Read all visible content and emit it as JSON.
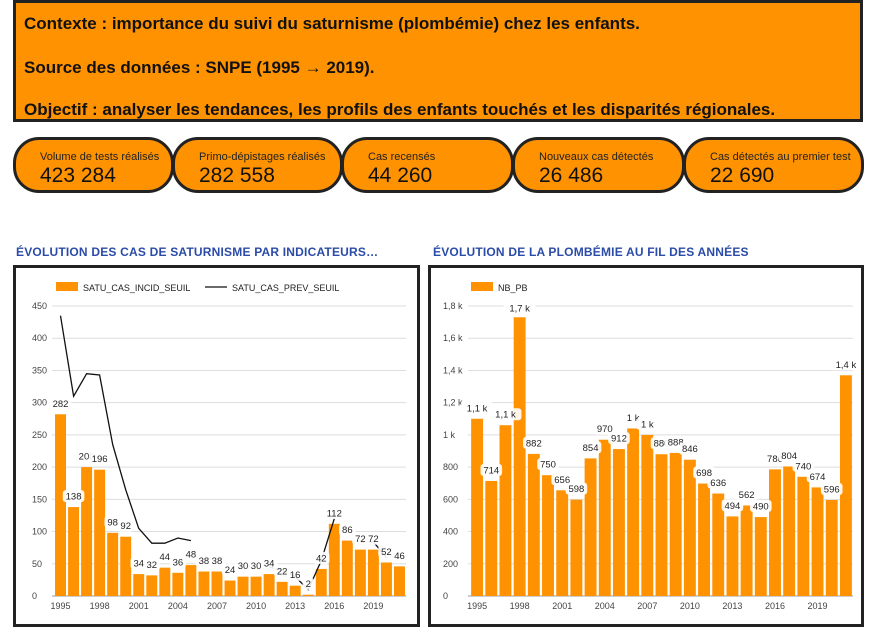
{
  "context": {
    "line1": "Contexte : importance du suivi du saturnisme (plombémie) chez les enfants.",
    "line2": "Source des données : SNPE (1995 → 2019).",
    "line3": "Objectif : analyser les tendances, les profils des enfants touchés et les disparités régionales."
  },
  "kpis": [
    {
      "label": "Volume de tests réalisés",
      "value": "423 284"
    },
    {
      "label": "Primo-dépistages réalisés",
      "value": "282 558"
    },
    {
      "label": "Cas recensés",
      "value": "44 260"
    },
    {
      "label": "Nouveaux cas détectés",
      "value": "26 486"
    },
    {
      "label": "Cas détectés au premier test",
      "value": "22 690"
    }
  ],
  "colors": {
    "accent": "#FF9200",
    "title": "#2B4BA8",
    "border": "#222222"
  },
  "chart_data": [
    {
      "type": "bar",
      "title": "ÉVOLUTION DES CAS DE SATURNISME PAR INDICATEURS…",
      "x": [
        1995,
        1996,
        1997,
        1998,
        1999,
        2000,
        2001,
        2002,
        2003,
        2004,
        2005,
        2006,
        2007,
        2008,
        2009,
        2010,
        2011,
        2012,
        2013,
        2014,
        2015,
        2016,
        2017,
        2018,
        2019,
        2020,
        2021
      ],
      "xticks": [
        "1995",
        "1998",
        "2001",
        "2004",
        "2007",
        "2010",
        "2013",
        "2016",
        "2019"
      ],
      "ylim": [
        0,
        450
      ],
      "yticks": [
        "0",
        "50",
        "100",
        "150",
        "200",
        "250",
        "300",
        "350",
        "400",
        "450"
      ],
      "legend_position": "top-left",
      "grid": true,
      "series": [
        {
          "name": "SATU_CAS_INCID_SEUIL",
          "kind": "bar",
          "values": [
            282,
            138,
            200,
            196,
            98,
            92,
            34,
            32,
            44,
            36,
            48,
            38,
            38,
            24,
            30,
            30,
            34,
            22,
            16,
            2,
            42,
            112,
            86,
            72,
            72,
            52,
            46
          ]
        },
        {
          "name": "SATU_CAS_PREV_SEUIL",
          "kind": "line",
          "values": [
            435,
            310,
            345,
            343,
            235,
            165,
            105,
            82,
            82,
            90,
            86,
            null,
            null,
            null,
            null,
            null,
            45,
            40,
            30,
            10,
            55,
            120,
            null,
            84,
            84,
            60,
            null
          ]
        }
      ]
    },
    {
      "type": "bar",
      "title": "ÉVOLUTION DE LA PLOMBÉMIE AU FIL DES ANNÉES",
      "x": [
        1995,
        1996,
        1997,
        1998,
        1999,
        2000,
        2001,
        2002,
        2003,
        2004,
        2005,
        2006,
        2007,
        2008,
        2009,
        2010,
        2011,
        2012,
        2013,
        2014,
        2015,
        2016,
        2017,
        2018,
        2019,
        2020,
        2021
      ],
      "xticks": [
        "1995",
        "1998",
        "2001",
        "2004",
        "2007",
        "2010",
        "2013",
        "2016",
        "2019"
      ],
      "ylim": [
        0,
        1800
      ],
      "yticks": [
        "0",
        "200",
        "400",
        "600",
        "800",
        "1 k",
        "1,2 k",
        "1,4 k",
        "1,6 k",
        "1,8 k"
      ],
      "legend_position": "top-left",
      "grid": true,
      "series": [
        {
          "name": "NB_PB",
          "kind": "bar",
          "values": [
            1100,
            714,
            1060,
            1730,
            882,
            750,
            656,
            598,
            854,
            970,
            912,
            1040,
            1000,
            880,
            888,
            846,
            698,
            636,
            494,
            562,
            490,
            786,
            804,
            740,
            674,
            596,
            1370
          ],
          "labels": [
            "1,1 k",
            "714",
            "1,1 k",
            "1,7 k",
            "882",
            "750",
            "656",
            "598",
            "854",
            "970",
            "912",
            "1 k",
            "1 k",
            "880",
            "888",
            "846",
            "698",
            "636",
            "494",
            "562",
            "490",
            "786",
            "804",
            "740",
            "674",
            "596",
            "1,4 k"
          ]
        }
      ]
    }
  ]
}
